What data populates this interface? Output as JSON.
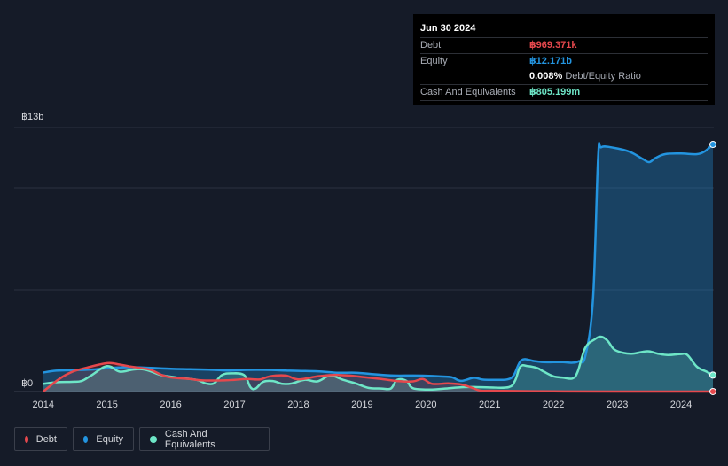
{
  "colors": {
    "background": "#151b28",
    "debt": "#e5484d",
    "equity": "#2394df",
    "cash": "#6ee6c7",
    "grid": "#2a3040",
    "axis_text": "#d6d8dd"
  },
  "tooltip": {
    "date": "Jun 30 2024",
    "debt_label": "Debt",
    "debt_value": "฿969.371k",
    "equity_label": "Equity",
    "equity_value": "฿12.171b",
    "ratio_value": "0.008%",
    "ratio_label": "Debt/Equity Ratio",
    "cash_label": "Cash And Equivalents",
    "cash_value": "฿805.199m"
  },
  "legend": {
    "debt": "Debt",
    "equity": "Equity",
    "cash": "Cash And Equivalents"
  },
  "chart_data": {
    "type": "area",
    "title": "",
    "ylabel": "",
    "y_top_label": "฿13b",
    "y_bottom_label": "฿0",
    "ylim": [
      0,
      13.0
    ],
    "xlim": [
      2013.99,
      2024.5
    ],
    "x_ticks": [
      "2014",
      "2015",
      "2016",
      "2017",
      "2018",
      "2019",
      "2020",
      "2021",
      "2022",
      "2023",
      "2024"
    ],
    "series": [
      {
        "name": "Equity",
        "key": "equity",
        "points": [
          [
            2014.0,
            0.94
          ],
          [
            2014.2,
            1.03
          ],
          [
            2014.5,
            1.06
          ],
          [
            2014.8,
            1.09
          ],
          [
            2015.0,
            1.15
          ],
          [
            2015.3,
            1.2
          ],
          [
            2015.6,
            1.18
          ],
          [
            2016.0,
            1.12
          ],
          [
            2016.3,
            1.1
          ],
          [
            2016.6,
            1.08
          ],
          [
            2016.9,
            1.04
          ],
          [
            2017.2,
            1.07
          ],
          [
            2017.5,
            1.07
          ],
          [
            2017.8,
            1.04
          ],
          [
            2018.0,
            1.02
          ],
          [
            2018.3,
            1.0
          ],
          [
            2018.6,
            0.93
          ],
          [
            2018.9,
            0.93
          ],
          [
            2019.2,
            0.85
          ],
          [
            2019.5,
            0.79
          ],
          [
            2019.8,
            0.79
          ],
          [
            2020.0,
            0.78
          ],
          [
            2020.2,
            0.75
          ],
          [
            2020.4,
            0.71
          ],
          [
            2020.55,
            0.53
          ],
          [
            2020.75,
            0.68
          ],
          [
            2020.9,
            0.59
          ],
          [
            2021.1,
            0.58
          ],
          [
            2021.28,
            0.6
          ],
          [
            2021.38,
            0.82
          ],
          [
            2021.5,
            1.55
          ],
          [
            2021.7,
            1.5
          ],
          [
            2021.85,
            1.45
          ],
          [
            2022.0,
            1.45
          ],
          [
            2022.15,
            1.45
          ],
          [
            2022.3,
            1.42
          ],
          [
            2022.4,
            1.5
          ],
          [
            2022.5,
            1.75
          ],
          [
            2022.62,
            4.6
          ],
          [
            2022.7,
            11.5
          ],
          [
            2022.75,
            12.03
          ],
          [
            2022.95,
            12.0
          ],
          [
            2023.2,
            11.8
          ],
          [
            2023.4,
            11.45
          ],
          [
            2023.5,
            11.3
          ],
          [
            2023.6,
            11.5
          ],
          [
            2023.75,
            11.69
          ],
          [
            2024.0,
            11.72
          ],
          [
            2024.25,
            11.69
          ],
          [
            2024.38,
            11.85
          ],
          [
            2024.5,
            12.17
          ]
        ]
      },
      {
        "name": "Cash And Equivalents",
        "key": "cash",
        "points": [
          [
            2014.0,
            0.38
          ],
          [
            2014.2,
            0.46
          ],
          [
            2014.45,
            0.48
          ],
          [
            2014.6,
            0.52
          ],
          [
            2014.75,
            0.79
          ],
          [
            2015.0,
            1.25
          ],
          [
            2015.2,
            0.98
          ],
          [
            2015.4,
            1.08
          ],
          [
            2015.55,
            1.1
          ],
          [
            2015.7,
            0.98
          ],
          [
            2015.85,
            0.81
          ],
          [
            2016.1,
            0.69
          ],
          [
            2016.4,
            0.58
          ],
          [
            2016.55,
            0.4
          ],
          [
            2016.68,
            0.41
          ],
          [
            2016.8,
            0.81
          ],
          [
            2016.95,
            0.9
          ],
          [
            2017.15,
            0.81
          ],
          [
            2017.25,
            0.21
          ],
          [
            2017.33,
            0.15
          ],
          [
            2017.45,
            0.48
          ],
          [
            2017.6,
            0.52
          ],
          [
            2017.75,
            0.38
          ],
          [
            2017.9,
            0.4
          ],
          [
            2018.1,
            0.58
          ],
          [
            2018.3,
            0.5
          ],
          [
            2018.5,
            0.79
          ],
          [
            2018.7,
            0.58
          ],
          [
            2018.9,
            0.4
          ],
          [
            2019.1,
            0.18
          ],
          [
            2019.3,
            0.15
          ],
          [
            2019.45,
            0.15
          ],
          [
            2019.55,
            0.58
          ],
          [
            2019.7,
            0.52
          ],
          [
            2019.8,
            0.16
          ],
          [
            2020.1,
            0.1
          ],
          [
            2020.3,
            0.15
          ],
          [
            2020.6,
            0.22
          ],
          [
            2020.8,
            0.22
          ],
          [
            2021.0,
            0.2
          ],
          [
            2021.3,
            0.22
          ],
          [
            2021.4,
            0.55
          ],
          [
            2021.48,
            1.23
          ],
          [
            2021.6,
            1.25
          ],
          [
            2021.75,
            1.15
          ],
          [
            2021.85,
            0.98
          ],
          [
            2022.0,
            0.75
          ],
          [
            2022.15,
            0.69
          ],
          [
            2022.3,
            0.65
          ],
          [
            2022.38,
            0.98
          ],
          [
            2022.5,
            2.16
          ],
          [
            2022.65,
            2.58
          ],
          [
            2022.75,
            2.7
          ],
          [
            2022.85,
            2.5
          ],
          [
            2022.95,
            2.08
          ],
          [
            2023.1,
            1.9
          ],
          [
            2023.25,
            1.87
          ],
          [
            2023.4,
            1.96
          ],
          [
            2023.5,
            1.98
          ],
          [
            2023.65,
            1.86
          ],
          [
            2023.8,
            1.8
          ],
          [
            2024.0,
            1.85
          ],
          [
            2024.1,
            1.8
          ],
          [
            2024.25,
            1.22
          ],
          [
            2024.4,
            0.98
          ],
          [
            2024.5,
            0.81
          ]
        ]
      },
      {
        "name": "Debt",
        "key": "debt",
        "points": [
          [
            2014.0,
            0.0
          ],
          [
            2014.25,
            0.62
          ],
          [
            2014.45,
            0.97
          ],
          [
            2014.65,
            1.15
          ],
          [
            2015.0,
            1.4
          ],
          [
            2015.2,
            1.33
          ],
          [
            2015.35,
            1.24
          ],
          [
            2015.55,
            1.15
          ],
          [
            2015.7,
            1.05
          ],
          [
            2015.85,
            0.83
          ],
          [
            2016.0,
            0.7
          ],
          [
            2016.3,
            0.62
          ],
          [
            2016.5,
            0.55
          ],
          [
            2016.8,
            0.55
          ],
          [
            2017.0,
            0.58
          ],
          [
            2017.2,
            0.62
          ],
          [
            2017.4,
            0.6
          ],
          [
            2017.55,
            0.75
          ],
          [
            2017.8,
            0.79
          ],
          [
            2018.0,
            0.6
          ],
          [
            2018.3,
            0.75
          ],
          [
            2018.55,
            0.82
          ],
          [
            2018.8,
            0.79
          ],
          [
            2019.0,
            0.72
          ],
          [
            2019.3,
            0.62
          ],
          [
            2019.55,
            0.52
          ],
          [
            2019.8,
            0.5
          ],
          [
            2019.95,
            0.62
          ],
          [
            2020.1,
            0.38
          ],
          [
            2020.35,
            0.4
          ],
          [
            2020.55,
            0.35
          ],
          [
            2020.7,
            0.21
          ],
          [
            2020.85,
            0.05
          ],
          [
            2021.0,
            0.04
          ],
          [
            2021.5,
            0.02
          ],
          [
            2022.0,
            0.01
          ],
          [
            2023.0,
            0.0
          ],
          [
            2024.5,
            0.001
          ]
        ]
      }
    ]
  }
}
